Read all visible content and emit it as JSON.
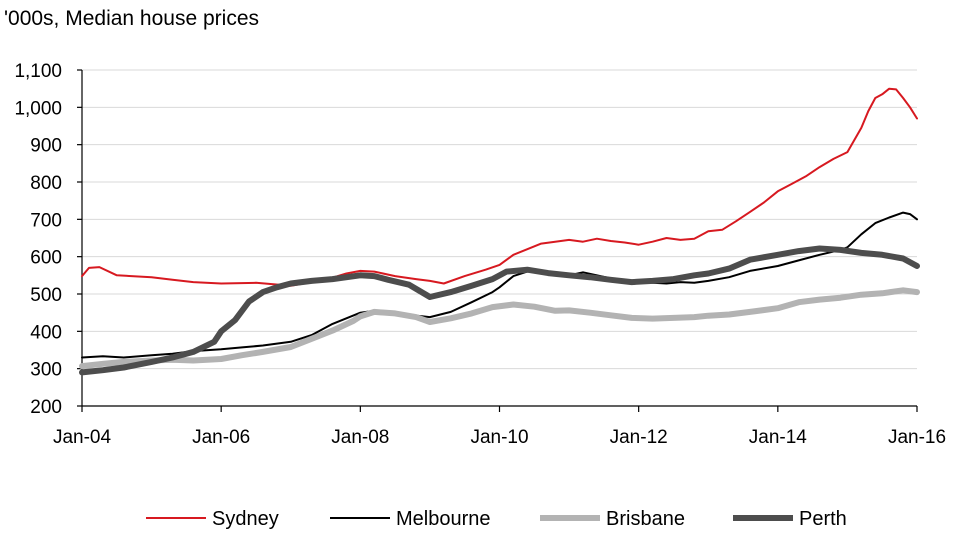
{
  "chart_data": {
    "type": "line",
    "title": "'000s, Median house prices",
    "xlabel": "",
    "ylabel": "'000s",
    "x_range": [
      2004,
      2016
    ],
    "ylim": [
      200,
      1100
    ],
    "y_ticks": [
      200,
      300,
      400,
      500,
      600,
      700,
      800,
      900,
      1000,
      1100
    ],
    "y_tick_labels": [
      "200",
      "300",
      "400",
      "500",
      "600",
      "700",
      "800",
      "900",
      "1,000",
      "1,100"
    ],
    "x_ticks": [
      2004,
      2006,
      2008,
      2010,
      2012,
      2014,
      2016
    ],
    "x_tick_labels": [
      "Jan-04",
      "Jan-06",
      "Jan-08",
      "Jan-10",
      "Jan-12",
      "Jan-14",
      "Jan-16"
    ],
    "grid": "horizontal",
    "legend_position": "bottom",
    "series": [
      {
        "name": "Sydney",
        "color": "#d71920",
        "width": 2,
        "points": [
          [
            2004.0,
            548
          ],
          [
            2004.1,
            570
          ],
          [
            2004.25,
            572
          ],
          [
            2004.5,
            550
          ],
          [
            2005.0,
            545
          ],
          [
            2005.3,
            538
          ],
          [
            2005.6,
            532
          ],
          [
            2006.0,
            528
          ],
          [
            2006.5,
            530
          ],
          [
            2007.0,
            522
          ],
          [
            2007.5,
            538
          ],
          [
            2007.8,
            555
          ],
          [
            2008.0,
            562
          ],
          [
            2008.2,
            560
          ],
          [
            2008.5,
            548
          ],
          [
            2008.8,
            540
          ],
          [
            2009.0,
            535
          ],
          [
            2009.2,
            528
          ],
          [
            2009.5,
            548
          ],
          [
            2009.8,
            565
          ],
          [
            2010.0,
            578
          ],
          [
            2010.2,
            605
          ],
          [
            2010.4,
            620
          ],
          [
            2010.6,
            635
          ],
          [
            2010.8,
            640
          ],
          [
            2011.0,
            645
          ],
          [
            2011.2,
            640
          ],
          [
            2011.4,
            648
          ],
          [
            2011.6,
            642
          ],
          [
            2011.8,
            638
          ],
          [
            2012.0,
            632
          ],
          [
            2012.2,
            640
          ],
          [
            2012.4,
            650
          ],
          [
            2012.6,
            645
          ],
          [
            2012.8,
            648
          ],
          [
            2013.0,
            668
          ],
          [
            2013.2,
            672
          ],
          [
            2013.4,
            695
          ],
          [
            2013.6,
            720
          ],
          [
            2013.8,
            745
          ],
          [
            2014.0,
            775
          ],
          [
            2014.2,
            795
          ],
          [
            2014.4,
            815
          ],
          [
            2014.6,
            840
          ],
          [
            2014.8,
            862
          ],
          [
            2015.0,
            880
          ],
          [
            2015.2,
            945
          ],
          [
            2015.3,
            990
          ],
          [
            2015.4,
            1025
          ],
          [
            2015.5,
            1035
          ],
          [
            2015.6,
            1050
          ],
          [
            2015.7,
            1048
          ],
          [
            2015.8,
            1025
          ],
          [
            2015.9,
            1000
          ],
          [
            2016.0,
            970
          ]
        ]
      },
      {
        "name": "Melbourne",
        "color": "#000000",
        "width": 2,
        "points": [
          [
            2004.0,
            330
          ],
          [
            2004.3,
            333
          ],
          [
            2004.6,
            330
          ],
          [
            2005.0,
            336
          ],
          [
            2005.3,
            340
          ],
          [
            2005.6,
            347
          ],
          [
            2006.0,
            352
          ],
          [
            2006.3,
            357
          ],
          [
            2006.6,
            362
          ],
          [
            2007.0,
            372
          ],
          [
            2007.3,
            390
          ],
          [
            2007.6,
            420
          ],
          [
            2008.0,
            450
          ],
          [
            2008.2,
            455
          ],
          [
            2008.4,
            450
          ],
          [
            2008.7,
            444
          ],
          [
            2009.0,
            438
          ],
          [
            2009.3,
            452
          ],
          [
            2009.6,
            478
          ],
          [
            2009.9,
            505
          ],
          [
            2010.0,
            518
          ],
          [
            2010.2,
            548
          ],
          [
            2010.4,
            560
          ],
          [
            2010.6,
            562
          ],
          [
            2010.8,
            555
          ],
          [
            2011.0,
            550
          ],
          [
            2011.2,
            558
          ],
          [
            2011.4,
            550
          ],
          [
            2011.6,
            542
          ],
          [
            2011.8,
            537
          ],
          [
            2012.0,
            532
          ],
          [
            2012.2,
            530
          ],
          [
            2012.4,
            528
          ],
          [
            2012.6,
            532
          ],
          [
            2012.8,
            530
          ],
          [
            2013.0,
            535
          ],
          [
            2013.3,
            545
          ],
          [
            2013.6,
            562
          ],
          [
            2014.0,
            575
          ],
          [
            2014.3,
            590
          ],
          [
            2014.6,
            605
          ],
          [
            2014.9,
            618
          ],
          [
            2015.0,
            625
          ],
          [
            2015.2,
            660
          ],
          [
            2015.4,
            690
          ],
          [
            2015.6,
            705
          ],
          [
            2015.8,
            718
          ],
          [
            2015.9,
            714
          ],
          [
            2016.0,
            700
          ]
        ]
      },
      {
        "name": "Brisbane",
        "color": "#b3b3b3",
        "width": 6,
        "points": [
          [
            2004.0,
            307
          ],
          [
            2004.3,
            313
          ],
          [
            2004.6,
            318
          ],
          [
            2005.0,
            322
          ],
          [
            2005.3,
            324
          ],
          [
            2005.6,
            322
          ],
          [
            2006.0,
            326
          ],
          [
            2006.3,
            336
          ],
          [
            2006.6,
            345
          ],
          [
            2007.0,
            358
          ],
          [
            2007.3,
            380
          ],
          [
            2007.6,
            402
          ],
          [
            2007.9,
            428
          ],
          [
            2008.0,
            440
          ],
          [
            2008.2,
            452
          ],
          [
            2008.5,
            448
          ],
          [
            2008.8,
            438
          ],
          [
            2009.0,
            425
          ],
          [
            2009.3,
            435
          ],
          [
            2009.6,
            448
          ],
          [
            2009.9,
            465
          ],
          [
            2010.2,
            472
          ],
          [
            2010.5,
            466
          ],
          [
            2010.8,
            455
          ],
          [
            2011.0,
            456
          ],
          [
            2011.3,
            450
          ],
          [
            2011.6,
            443
          ],
          [
            2011.9,
            436
          ],
          [
            2012.2,
            434
          ],
          [
            2012.5,
            436
          ],
          [
            2012.8,
            438
          ],
          [
            2013.0,
            442
          ],
          [
            2013.3,
            445
          ],
          [
            2013.6,
            452
          ],
          [
            2014.0,
            462
          ],
          [
            2014.3,
            478
          ],
          [
            2014.6,
            485
          ],
          [
            2014.9,
            490
          ],
          [
            2015.2,
            498
          ],
          [
            2015.5,
            502
          ],
          [
            2015.8,
            510
          ],
          [
            2016.0,
            505
          ]
        ]
      },
      {
        "name": "Perth",
        "color": "#4d4d4d",
        "width": 6,
        "points": [
          [
            2004.0,
            290
          ],
          [
            2004.3,
            296
          ],
          [
            2004.6,
            303
          ],
          [
            2005.0,
            318
          ],
          [
            2005.3,
            330
          ],
          [
            2005.6,
            345
          ],
          [
            2005.9,
            372
          ],
          [
            2006.0,
            400
          ],
          [
            2006.2,
            430
          ],
          [
            2006.4,
            480
          ],
          [
            2006.6,
            505
          ],
          [
            2006.8,
            518
          ],
          [
            2007.0,
            528
          ],
          [
            2007.3,
            535
          ],
          [
            2007.6,
            540
          ],
          [
            2008.0,
            550
          ],
          [
            2008.2,
            548
          ],
          [
            2008.4,
            538
          ],
          [
            2008.7,
            525
          ],
          [
            2009.0,
            492
          ],
          [
            2009.3,
            505
          ],
          [
            2009.6,
            522
          ],
          [
            2009.9,
            540
          ],
          [
            2010.1,
            560
          ],
          [
            2010.4,
            565
          ],
          [
            2010.7,
            556
          ],
          [
            2011.0,
            550
          ],
          [
            2011.3,
            545
          ],
          [
            2011.6,
            538
          ],
          [
            2011.9,
            532
          ],
          [
            2012.2,
            535
          ],
          [
            2012.5,
            540
          ],
          [
            2012.8,
            550
          ],
          [
            2013.0,
            555
          ],
          [
            2013.3,
            568
          ],
          [
            2013.6,
            592
          ],
          [
            2014.0,
            605
          ],
          [
            2014.3,
            615
          ],
          [
            2014.6,
            622
          ],
          [
            2014.9,
            618
          ],
          [
            2015.2,
            610
          ],
          [
            2015.5,
            605
          ],
          [
            2015.8,
            595
          ],
          [
            2016.0,
            575
          ]
        ]
      }
    ]
  }
}
